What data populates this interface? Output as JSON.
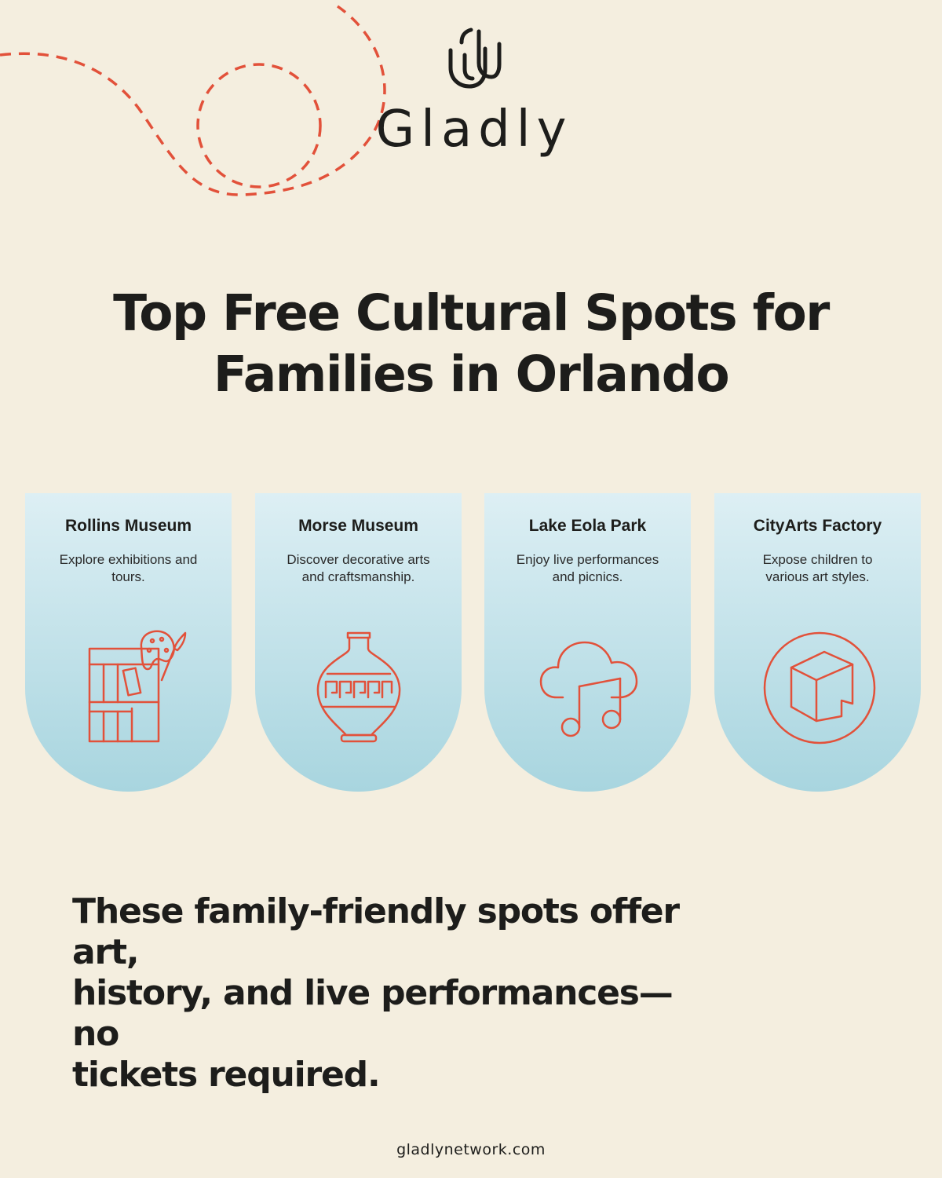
{
  "brand": {
    "name": "Gladly",
    "website": "gladlynetwork.com",
    "accent_color": "#e2513a"
  },
  "title": {
    "line1": "Top Free Cultural Spots for",
    "line2": "Families in Orlando"
  },
  "cards": [
    {
      "name": "Rollins Museum",
      "line1": "Explore exhibitions and",
      "line2": "tours.",
      "icon": "art-gallery-icon"
    },
    {
      "name": "Morse Museum",
      "line1": "Discover decorative arts",
      "line2": "and craftsmanship.",
      "icon": "vase-icon"
    },
    {
      "name": "Lake Eola Park",
      "line1": "Enjoy live performances",
      "line2": "and picnics.",
      "icon": "cloud-music-icon"
    },
    {
      "name": "CityArts Factory",
      "line1": "Expose children to",
      "line2": "various art styles.",
      "icon": "cube-circle-icon"
    }
  ],
  "footnote": {
    "line1": "These family-friendly spots offer art,",
    "line2": "history, and live performances—no",
    "line3": "tickets required."
  }
}
